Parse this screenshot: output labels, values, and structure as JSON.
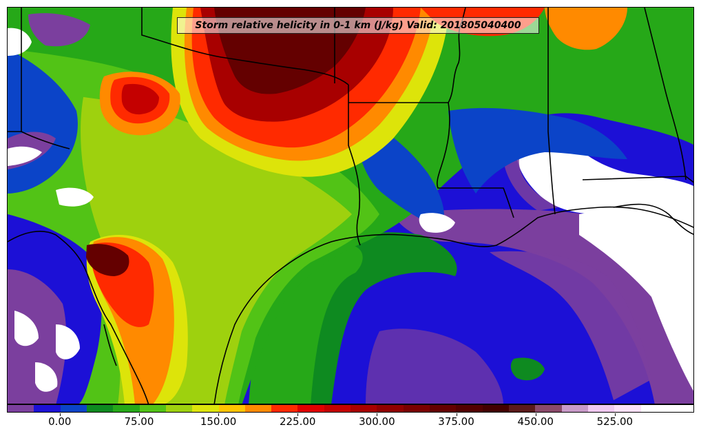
{
  "title": "Storm relative helicity in 0-1 km (J/kg) Valid: 201805040400",
  "colorbar": {
    "labels": [
      "0.00",
      "75.00",
      "150.00",
      "225.00",
      "300.00",
      "375.00",
      "450.00",
      "525.00"
    ],
    "label_values": [
      0,
      75,
      150,
      225,
      300,
      375,
      450,
      525
    ],
    "min": -50,
    "max": 600,
    "step": 25,
    "colors": [
      "#7b3f9e",
      "#1c10d6",
      "#0b44c8",
      "#0e8a20",
      "#26a818",
      "#52c316",
      "#9ed10e",
      "#dde40a",
      "#ffc400",
      "#ff8a00",
      "#ff2a00",
      "#e00000",
      "#c40000",
      "#a80000",
      "#900000",
      "#7a0000",
      "#640000",
      "#520000",
      "#420000",
      "#5a1a1a",
      "#8a4a6a",
      "#c89ac8",
      "#f0c8f0",
      "#fce0f8",
      "#ffffff",
      "#ffffff"
    ]
  },
  "map": {
    "background_color": "#ffffff",
    "ocean_color": "#1c10d6",
    "land_color": "#9ed10e"
  }
}
